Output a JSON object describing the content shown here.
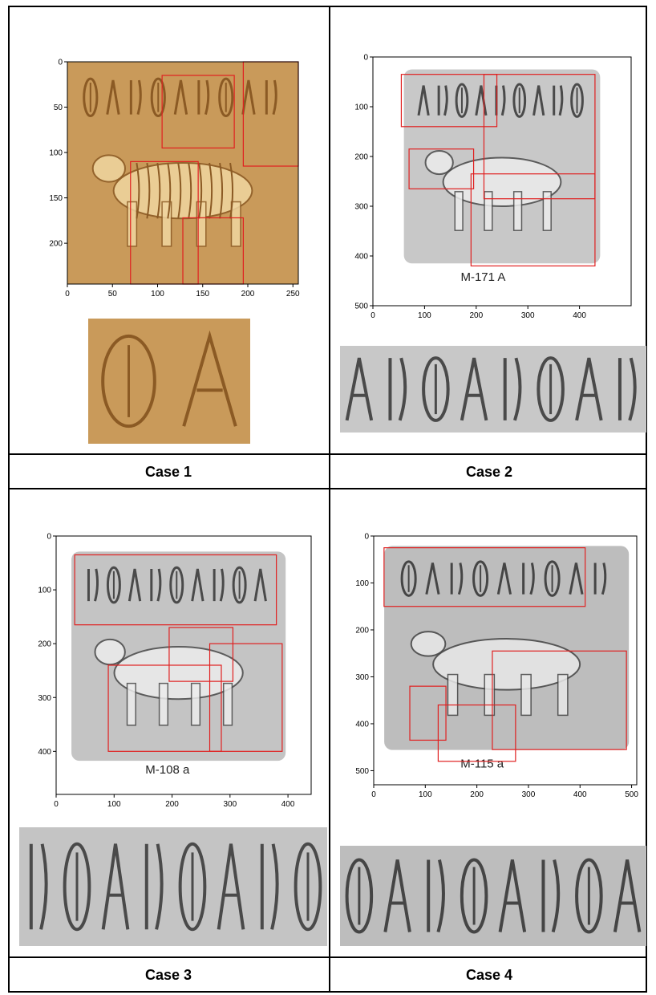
{
  "cases": [
    {
      "label": "Case 1",
      "seal_label": "",
      "plot": {
        "xlim": [
          0,
          256
        ],
        "ylim": [
          0,
          245
        ],
        "xticks": [
          0,
          50,
          100,
          150,
          200,
          250
        ],
        "yticks": [
          0,
          50,
          100,
          150,
          200
        ],
        "boxes": [
          [
            105,
            15,
            185,
            95
          ],
          [
            195,
            0,
            256,
            115
          ],
          [
            70,
            110,
            145,
            245
          ],
          [
            128,
            172,
            195,
            245
          ]
        ]
      },
      "palette": {
        "bg": "#c99a5a",
        "relief": "#8b5a24",
        "highlight": "#f0d6a0"
      }
    },
    {
      "label": "Case 2",
      "seal_label": "M-171 A",
      "plot": {
        "xlim": [
          0,
          500
        ],
        "ylim": [
          0,
          500
        ],
        "xticks": [
          0,
          100,
          200,
          300,
          400
        ],
        "yticks": [
          0,
          100,
          200,
          300,
          400,
          500
        ],
        "boxes": [
          [
            55,
            35,
            240,
            140
          ],
          [
            215,
            35,
            430,
            285
          ],
          [
            70,
            185,
            195,
            265
          ],
          [
            190,
            235,
            430,
            420
          ]
        ]
      },
      "palette": {
        "bg": "#c8c8c8",
        "relief": "#4a4a4a",
        "highlight": "#ececec"
      }
    },
    {
      "label": "Case 3",
      "seal_label": "M-108 a",
      "plot": {
        "xlim": [
          0,
          440
        ],
        "ylim": [
          0,
          480
        ],
        "xticks": [
          0,
          100,
          200,
          300,
          400
        ],
        "yticks": [
          0,
          100,
          200,
          300,
          400
        ],
        "boxes": [
          [
            32,
            35,
            380,
            165
          ],
          [
            195,
            170,
            305,
            270
          ],
          [
            265,
            200,
            390,
            400
          ],
          [
            90,
            240,
            285,
            400
          ]
        ]
      },
      "palette": {
        "bg": "#c4c4c4",
        "relief": "#4a4a4a",
        "highlight": "#ececec"
      }
    },
    {
      "label": "Case 4",
      "seal_label": "M-115 a",
      "plot": {
        "xlim": [
          0,
          510
        ],
        "ylim": [
          0,
          530
        ],
        "xticks": [
          0,
          100,
          200,
          300,
          400,
          500
        ],
        "yticks": [
          0,
          100,
          200,
          300,
          400,
          500
        ],
        "boxes": [
          [
            20,
            25,
            410,
            150
          ],
          [
            230,
            245,
            490,
            455
          ],
          [
            70,
            320,
            140,
            435
          ],
          [
            125,
            360,
            275,
            480
          ]
        ]
      },
      "palette": {
        "bg": "#bdbdbd",
        "relief": "#454545",
        "highlight": "#e8e8e8"
      }
    }
  ]
}
